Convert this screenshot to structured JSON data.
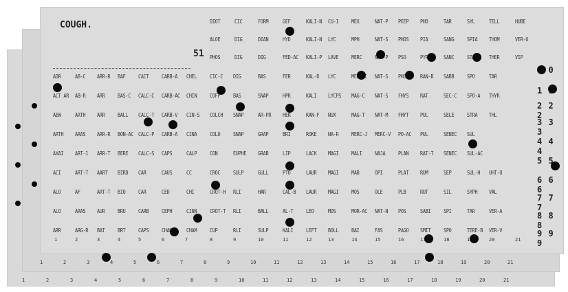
{
  "card": {
    "title": "COUGH.",
    "number": "51"
  },
  "row_numbers": [
    "0 0",
    "1 1",
    "2 2 2",
    "3 3 3",
    "4 4 4",
    "5 5",
    "6 6 6",
    "7 7 7",
    "8 8 8",
    "9 9 9"
  ],
  "bottom_numbers": [
    "1",
    "2",
    "3",
    "4",
    "5",
    "6",
    "7",
    "8",
    "9",
    "10",
    "11",
    "12",
    "13",
    "14",
    "15",
    "16",
    "17",
    "18",
    "19",
    "20",
    "21"
  ],
  "columns": [
    [
      "ADR",
      "ACT AR",
      "AEW",
      "ARTH",
      "AXAI",
      "ACI",
      "ALO",
      "ALO",
      "ARR"
    ],
    [
      "AB-C",
      "AB-R",
      "ARTH",
      "ARAS",
      "ART-1",
      "ART-T",
      "AF",
      "ARAS",
      "ARG-R"
    ],
    [
      "ARR-R",
      "ARR",
      "ARR",
      "ARR-R",
      "ARR-T",
      "AART",
      "ART-T",
      "AUR",
      "BAT"
    ],
    [
      "BAF",
      "BAS-C",
      "BALL",
      "BON-AC",
      "BERE",
      "BIRD",
      "BIO",
      "BRU",
      "BRT"
    ],
    [
      "CACT",
      "CALC-C",
      "CALC-T",
      "CALC-P",
      "CALC-S",
      "CAR",
      "CAR",
      "CARB",
      "CAPS"
    ],
    [
      "CARB-A",
      "CARB-AC",
      "CARB-V",
      "CARB-A",
      "CAPS",
      "CAUS",
      "CED",
      "CEPH",
      "CHAM"
    ],
    [
      "CHEL",
      "CHIN",
      "CIN-S",
      "CINA",
      "CALP",
      "CC",
      "CHI",
      "CINN",
      "CHAM"
    ],
    [
      "CIC-C",
      "COFF",
      "COLCH",
      "COLO",
      "CON",
      "CROC",
      "CROT-H",
      "CROT-T",
      "CUP"
    ]
  ],
  "top_columns": [
    [
      "DIOT",
      "ALOE",
      "PHOS"
    ],
    [
      "CIC",
      "DIG",
      "DIG"
    ],
    [
      "FORM",
      "DIAN",
      "DIG"
    ],
    [
      "GEF",
      "HYD",
      "FED-AC"
    ],
    [
      "KALI-N",
      "KALI-N",
      "KALI-P"
    ],
    [
      "CU-I",
      "LYC",
      "LAVE"
    ],
    [
      "MEX",
      "MPH",
      "MERC"
    ],
    [
      "NAT-P",
      "NAT-S",
      "NAT-P"
    ],
    [
      "PEEP",
      "PHOS",
      "PSO"
    ],
    [
      "PHO",
      "PIA",
      "PYRO"
    ],
    [
      "TAR",
      "SANG",
      "SANC"
    ],
    [
      "SYL",
      "SPIA",
      "STAP"
    ],
    [
      "TELL",
      "THOM",
      "THER"
    ],
    [
      "HUBE",
      "VER-U",
      "VIP"
    ]
  ],
  "mid_labels": [
    [
      "DIG",
      "BAS",
      "SNAP",
      "SNAP",
      "EUPHE",
      "SULP",
      "RLI",
      "RLI",
      "RLI"
    ],
    [
      "BAS",
      "SNAP",
      "AR-PR",
      "GRAP",
      "GRAB",
      "GULL",
      "HAR",
      "BALL",
      "SULP"
    ],
    [
      "FER",
      "HPR",
      "HER",
      "BRI",
      "LIP",
      "PTO",
      "CAL-B",
      "AL-T",
      "KALI"
    ],
    [
      "KAL-D",
      "KALI",
      "KAN-F",
      "ROKE",
      "LACK",
      "LAUR",
      "LAUR",
      "LEO",
      "LEFT"
    ],
    [
      "LYC",
      "LYCPS",
      "NUX",
      "NA-R",
      "MAGI",
      "MAGI",
      "MAGI",
      "MOS",
      "BOLL"
    ],
    [
      "MERC-C",
      "MAG-C",
      "MAG-T",
      "MERC-J",
      "MALI",
      "MAB",
      "MOS",
      "MOR-AC",
      "BAI"
    ],
    [
      "NAT-S",
      "NAT-S",
      "NAT-M",
      "MERC-V",
      "NAJA",
      "OPI",
      "OLE",
      "NAT-N",
      "FAS"
    ],
    [
      "PHO-AC",
      "FHYS",
      "FHYT",
      "PO-AC",
      "PLAN",
      "PLAT",
      "PLB",
      "POS",
      "PAGO"
    ],
    [
      "RAN-B",
      "RAT",
      "PUL",
      "PUL",
      "RAT-T",
      "RUM",
      "RUT",
      "SABI",
      "SMIT"
    ],
    [
      "SABB",
      "SEC-C",
      "SELE",
      "SENEC",
      "SENEC",
      "SEP",
      "SIL",
      "SPI",
      "SPO"
    ],
    [
      "SPO",
      "SPO-A",
      "STRA",
      "SUL",
      "SUL-AC",
      "SUL-H",
      "SYPH",
      "TAR",
      "TERE-B"
    ],
    [
      "TAR",
      "THYR",
      "THL",
      "",
      "",
      "UHT-U",
      "VAL",
      "VER-A",
      "VER-V"
    ]
  ],
  "holes_text": "punched"
}
